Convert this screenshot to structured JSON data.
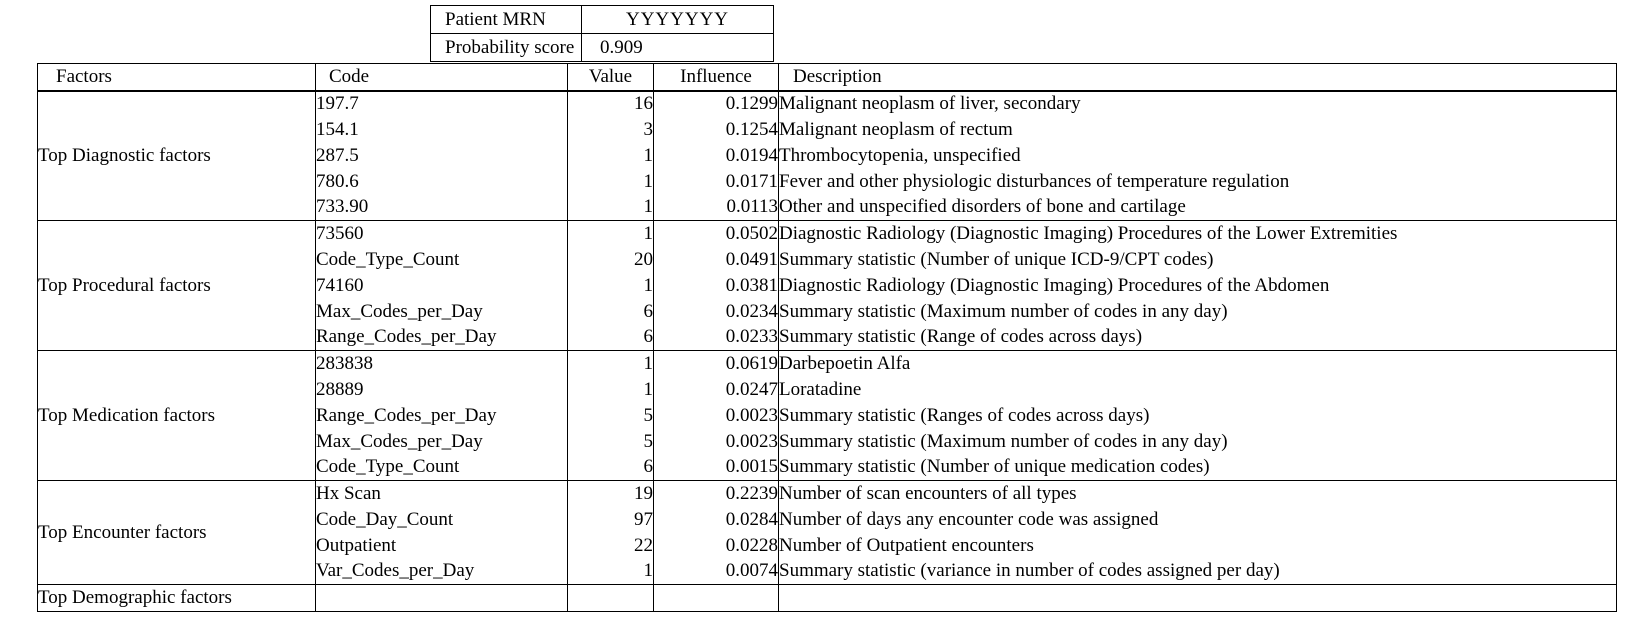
{
  "patient_info": {
    "rows": [
      {
        "label": "Patient MRN",
        "value": "YYYYYYY"
      },
      {
        "label": "Probability score",
        "value": "0.909"
      }
    ]
  },
  "factors_table": {
    "headers": [
      "Factors",
      "Code",
      "Value",
      "Influence",
      "Description"
    ],
    "sections": [
      {
        "factor": "Top Diagnostic factors",
        "rows": [
          {
            "code": "197.7",
            "value": "16",
            "influence": "0.1299",
            "description": "Malignant neoplasm of liver, secondary"
          },
          {
            "code": "154.1",
            "value": "3",
            "influence": "0.1254",
            "description": "Malignant neoplasm of rectum"
          },
          {
            "code": "287.5",
            "value": "1",
            "influence": "0.0194",
            "description": "Thrombocytopenia, unspecified"
          },
          {
            "code": "780.6",
            "value": "1",
            "influence": "0.0171",
            "description": "Fever and other physiologic disturbances of temperature regulation"
          },
          {
            "code": "733.90",
            "value": "1",
            "influence": "0.0113",
            "description": "Other and unspecified disorders of bone and cartilage"
          }
        ]
      },
      {
        "factor": "Top Procedural factors",
        "rows": [
          {
            "code": "73560",
            "value": "1",
            "influence": "0.0502",
            "description": "Diagnostic Radiology (Diagnostic Imaging) Procedures of the Lower Extremities"
          },
          {
            "code": "Code_Type_Count",
            "value": "20",
            "influence": "0.0491",
            "description": "Summary statistic (Number of unique ICD-9/CPT codes)"
          },
          {
            "code": "74160",
            "value": "1",
            "influence": "0.0381",
            "description": "Diagnostic Radiology (Diagnostic Imaging) Procedures of the Abdomen"
          },
          {
            "code": "Max_Codes_per_Day",
            "value": "6",
            "influence": "0.0234",
            "description": "Summary statistic (Maximum number of codes in any day)"
          },
          {
            "code": "Range_Codes_per_Day",
            "value": "6",
            "influence": "0.0233",
            "description": "Summary statistic (Range of codes across days)"
          }
        ]
      },
      {
        "factor": "Top Medication factors",
        "rows": [
          {
            "code": "283838",
            "value": "1",
            "influence": "0.0619",
            "description": "Darbepoetin Alfa"
          },
          {
            "code": "28889",
            "value": "1",
            "influence": "0.0247",
            "description": "Loratadine"
          },
          {
            "code": "Range_Codes_per_Day",
            "value": "5",
            "influence": "0.0023",
            "description": "Summary statistic (Ranges of codes across days)"
          },
          {
            "code": "Max_Codes_per_Day",
            "value": "5",
            "influence": "0.0023",
            "description": "Summary statistic (Maximum number of codes in any day)"
          },
          {
            "code": "Code_Type_Count",
            "value": "6",
            "influence": "0.0015",
            "description": "Summary statistic (Number of unique medication codes)"
          }
        ]
      },
      {
        "factor": "Top Encounter factors",
        "rows": [
          {
            "code": "Hx Scan",
            "value": "19",
            "influence": "0.2239",
            "description": "Number of scan encounters of all types"
          },
          {
            "code": "Code_Day_Count",
            "value": "97",
            "influence": "0.0284",
            "description": "Number of days any encounter code was assigned"
          },
          {
            "code": "Outpatient",
            "value": "22",
            "influence": "0.0228",
            "description": "Number of Outpatient encounters"
          },
          {
            "code": "Var_Codes_per_Day",
            "value": "1",
            "influence": "0.0074",
            "description": "Summary statistic (variance in number of codes assigned per day)"
          }
        ]
      },
      {
        "factor": "Top Demographic factors",
        "rows": [
          {
            "code": "",
            "value": "",
            "influence": "",
            "description": ""
          }
        ]
      }
    ]
  }
}
